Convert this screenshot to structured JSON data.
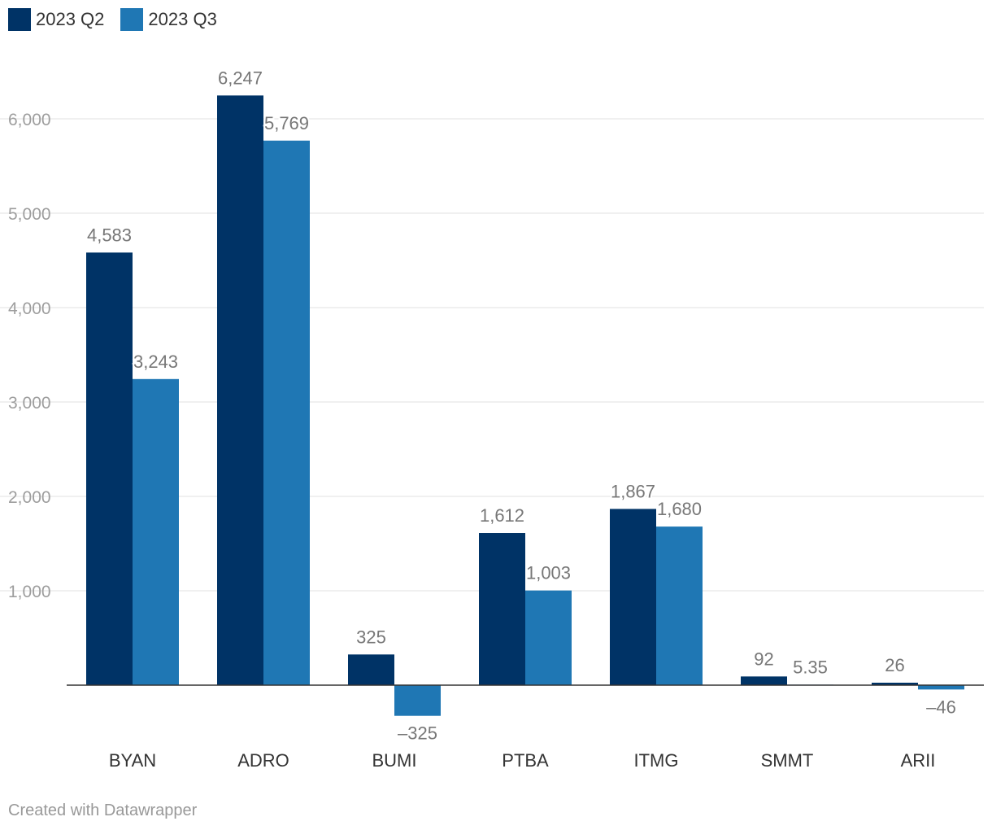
{
  "chart_data": {
    "type": "bar",
    "categories": [
      "BYAN",
      "ADRO",
      "BUMI",
      "PTBA",
      "ITMG",
      "SMMT",
      "ARII"
    ],
    "series": [
      {
        "name": "2023 Q2",
        "color": "#003366",
        "values": [
          4583,
          6247,
          325,
          1612,
          1867,
          92,
          26
        ],
        "labels": [
          "4,583",
          "6,247",
          "325",
          "1,612",
          "1,867",
          "92",
          "26"
        ]
      },
      {
        "name": "2023 Q3",
        "color": "#1f77b4",
        "values": [
          3243,
          5769,
          -325,
          1003,
          1680,
          5.35,
          -46
        ],
        "labels": [
          "3,243",
          "5,769",
          "–325",
          "1,003",
          "1,680",
          "5.35",
          "–46"
        ]
      }
    ],
    "yticks": [
      1000,
      2000,
      3000,
      4000,
      5000,
      6000
    ],
    "ytick_labels": [
      "1,000",
      "2,000",
      "3,000",
      "4,000",
      "5,000",
      "6,000"
    ],
    "grid": true,
    "legend": "top-left"
  },
  "footer": {
    "credit": "Created with Datawrapper"
  }
}
